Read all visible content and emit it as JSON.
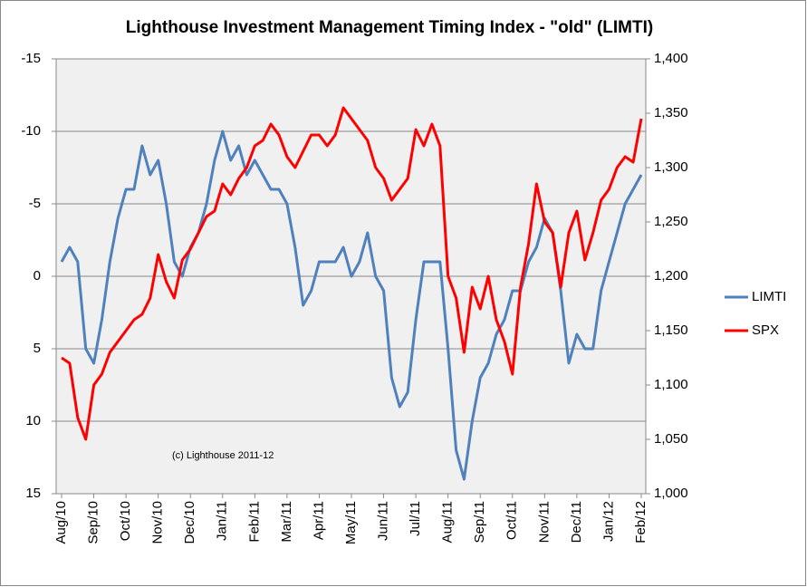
{
  "chart_data": {
    "type": "line",
    "title": "Lighthouse Investment Management Timing Index - \"old\" (LIMTI)",
    "annotation": "(c) Lighthouse 2011-12",
    "categories": [
      "Aug/10",
      null,
      null,
      null,
      "Sep/10",
      null,
      null,
      null,
      "Oct/10",
      null,
      null,
      null,
      "Nov/10",
      null,
      null,
      null,
      "Dec/10",
      null,
      null,
      null,
      "Jan/11",
      null,
      null,
      null,
      "Feb/11",
      null,
      null,
      null,
      "Mar/11",
      null,
      null,
      null,
      "Apr/11",
      null,
      null,
      null,
      "May/11",
      null,
      null,
      null,
      "Jun/11",
      null,
      null,
      null,
      "Jul/11",
      null,
      null,
      null,
      "Aug/11",
      null,
      null,
      null,
      "Sep/11",
      null,
      null,
      null,
      "Oct/11",
      null,
      null,
      null,
      "Nov/11",
      null,
      null,
      null,
      "Dec/11",
      null,
      null,
      null,
      "Jan/12",
      null,
      null,
      null,
      "Feb/12"
    ],
    "series": [
      {
        "name": "LIMTI",
        "color": "#4f81bd",
        "axis": "y",
        "values": [
          -1,
          -2,
          -1,
          5,
          6,
          3,
          -1,
          -4,
          -6,
          -6,
          -9,
          -7,
          -8,
          -5,
          -1,
          0,
          -2,
          -3,
          -5,
          -8,
          -10,
          -8,
          -9,
          -7,
          -8,
          -7,
          -6,
          -6,
          -5,
          -2,
          2,
          1,
          -1,
          -1,
          -1,
          -2,
          0,
          -1,
          -3,
          0,
          1,
          7,
          9,
          8,
          3,
          -1,
          -1,
          -1,
          5,
          12,
          14,
          10,
          7,
          6,
          4,
          3,
          1,
          1,
          -1,
          -2,
          -4,
          -3,
          1,
          6,
          4,
          5,
          5,
          1,
          -1,
          -3,
          -5,
          -6,
          -7
        ]
      },
      {
        "name": "SPX",
        "color": "#ff0000",
        "axis": "y2",
        "values": [
          1125,
          1120,
          1070,
          1050,
          1100,
          1110,
          1130,
          1140,
          1150,
          1160,
          1165,
          1180,
          1220,
          1195,
          1180,
          1215,
          1225,
          1240,
          1255,
          1260,
          1285,
          1275,
          1290,
          1300,
          1320,
          1325,
          1340,
          1330,
          1310,
          1300,
          1315,
          1330,
          1330,
          1320,
          1330,
          1355,
          1345,
          1335,
          1325,
          1300,
          1290,
          1270,
          1280,
          1290,
          1335,
          1320,
          1340,
          1320,
          1200,
          1180,
          1130,
          1190,
          1170,
          1200,
          1160,
          1140,
          1110,
          1190,
          1230,
          1285,
          1250,
          1240,
          1190,
          1240,
          1260,
          1215,
          1240,
          1270,
          1280,
          1300,
          1310,
          1305,
          1345
        ]
      }
    ],
    "ylim": [
      -15,
      15
    ],
    "y_inverted": true,
    "yticks": [
      -15,
      -10,
      -5,
      0,
      5,
      10,
      15
    ],
    "y2lim": [
      1000,
      1400
    ],
    "y2ticks": [
      {
        "value": 1000,
        "label": "1,000"
      },
      {
        "value": 1050,
        "label": "1,050"
      },
      {
        "value": 1100,
        "label": "1,100"
      },
      {
        "value": 1150,
        "label": "1,150"
      },
      {
        "value": 1200,
        "label": "1,200"
      },
      {
        "value": 1250,
        "label": "1,250"
      },
      {
        "value": 1300,
        "label": "1,300"
      },
      {
        "value": 1350,
        "label": "1,350"
      },
      {
        "value": 1400,
        "label": "1,400"
      }
    ],
    "grid": true,
    "legend": "right"
  }
}
